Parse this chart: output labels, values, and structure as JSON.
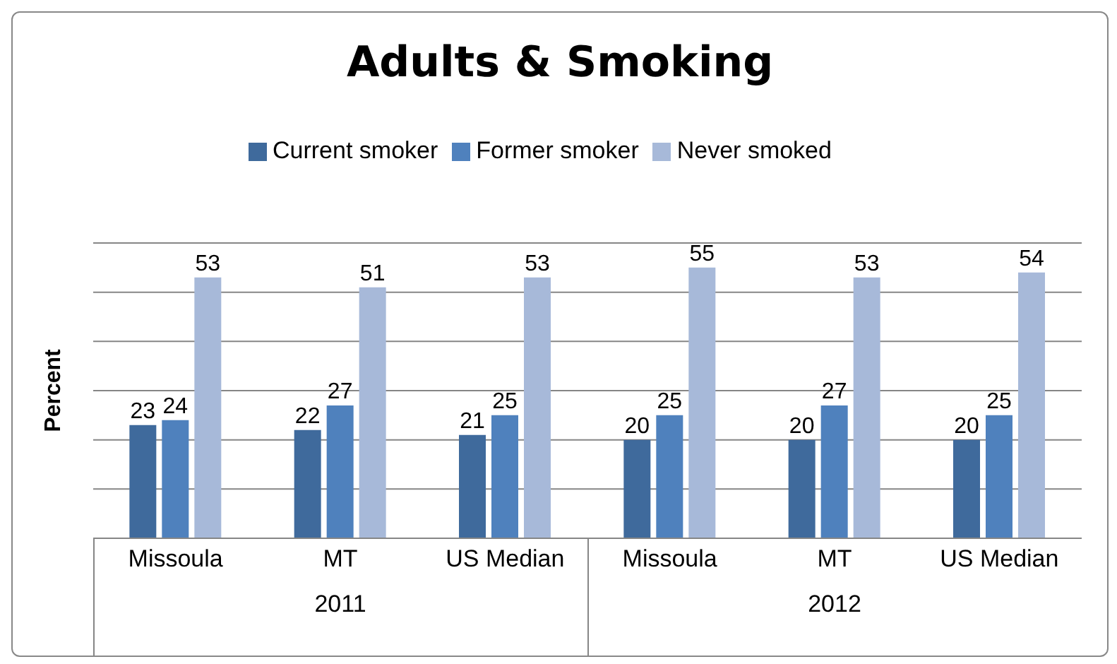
{
  "chart_data": {
    "type": "bar",
    "title": "Adults & Smoking",
    "ylabel": "Percent",
    "categories": [
      "Missoula",
      "MT",
      "US Median",
      "Missoula",
      "MT",
      "US Median"
    ],
    "series": [
      {
        "name": "Current smoker",
        "color": "#3f6a9c",
        "values": [
          23,
          22,
          21,
          20,
          20,
          20
        ]
      },
      {
        "name": "Former smoker",
        "color": "#4f81bd",
        "values": [
          24,
          27,
          25,
          25,
          27,
          25
        ]
      },
      {
        "name": "Never smoked",
        "color": "#a7b9d9",
        "values": [
          53,
          51,
          53,
          55,
          53,
          54
        ]
      }
    ],
    "annotations": [
      "2011",
      "2012"
    ],
    "ylim": [
      0,
      60
    ],
    "yticks": [
      {
        "value": 0,
        "label": null
      },
      {
        "value": 10,
        "label": null
      },
      {
        "value": 20,
        "label": null
      },
      {
        "value": 30,
        "label": null
      },
      {
        "value": 40,
        "label": null
      },
      {
        "value": 50,
        "label": null
      },
      {
        "value": 60,
        "label": null
      }
    ],
    "grid": "y",
    "legend": "top",
    "tick_labels": "x",
    "data_labels": true
  }
}
